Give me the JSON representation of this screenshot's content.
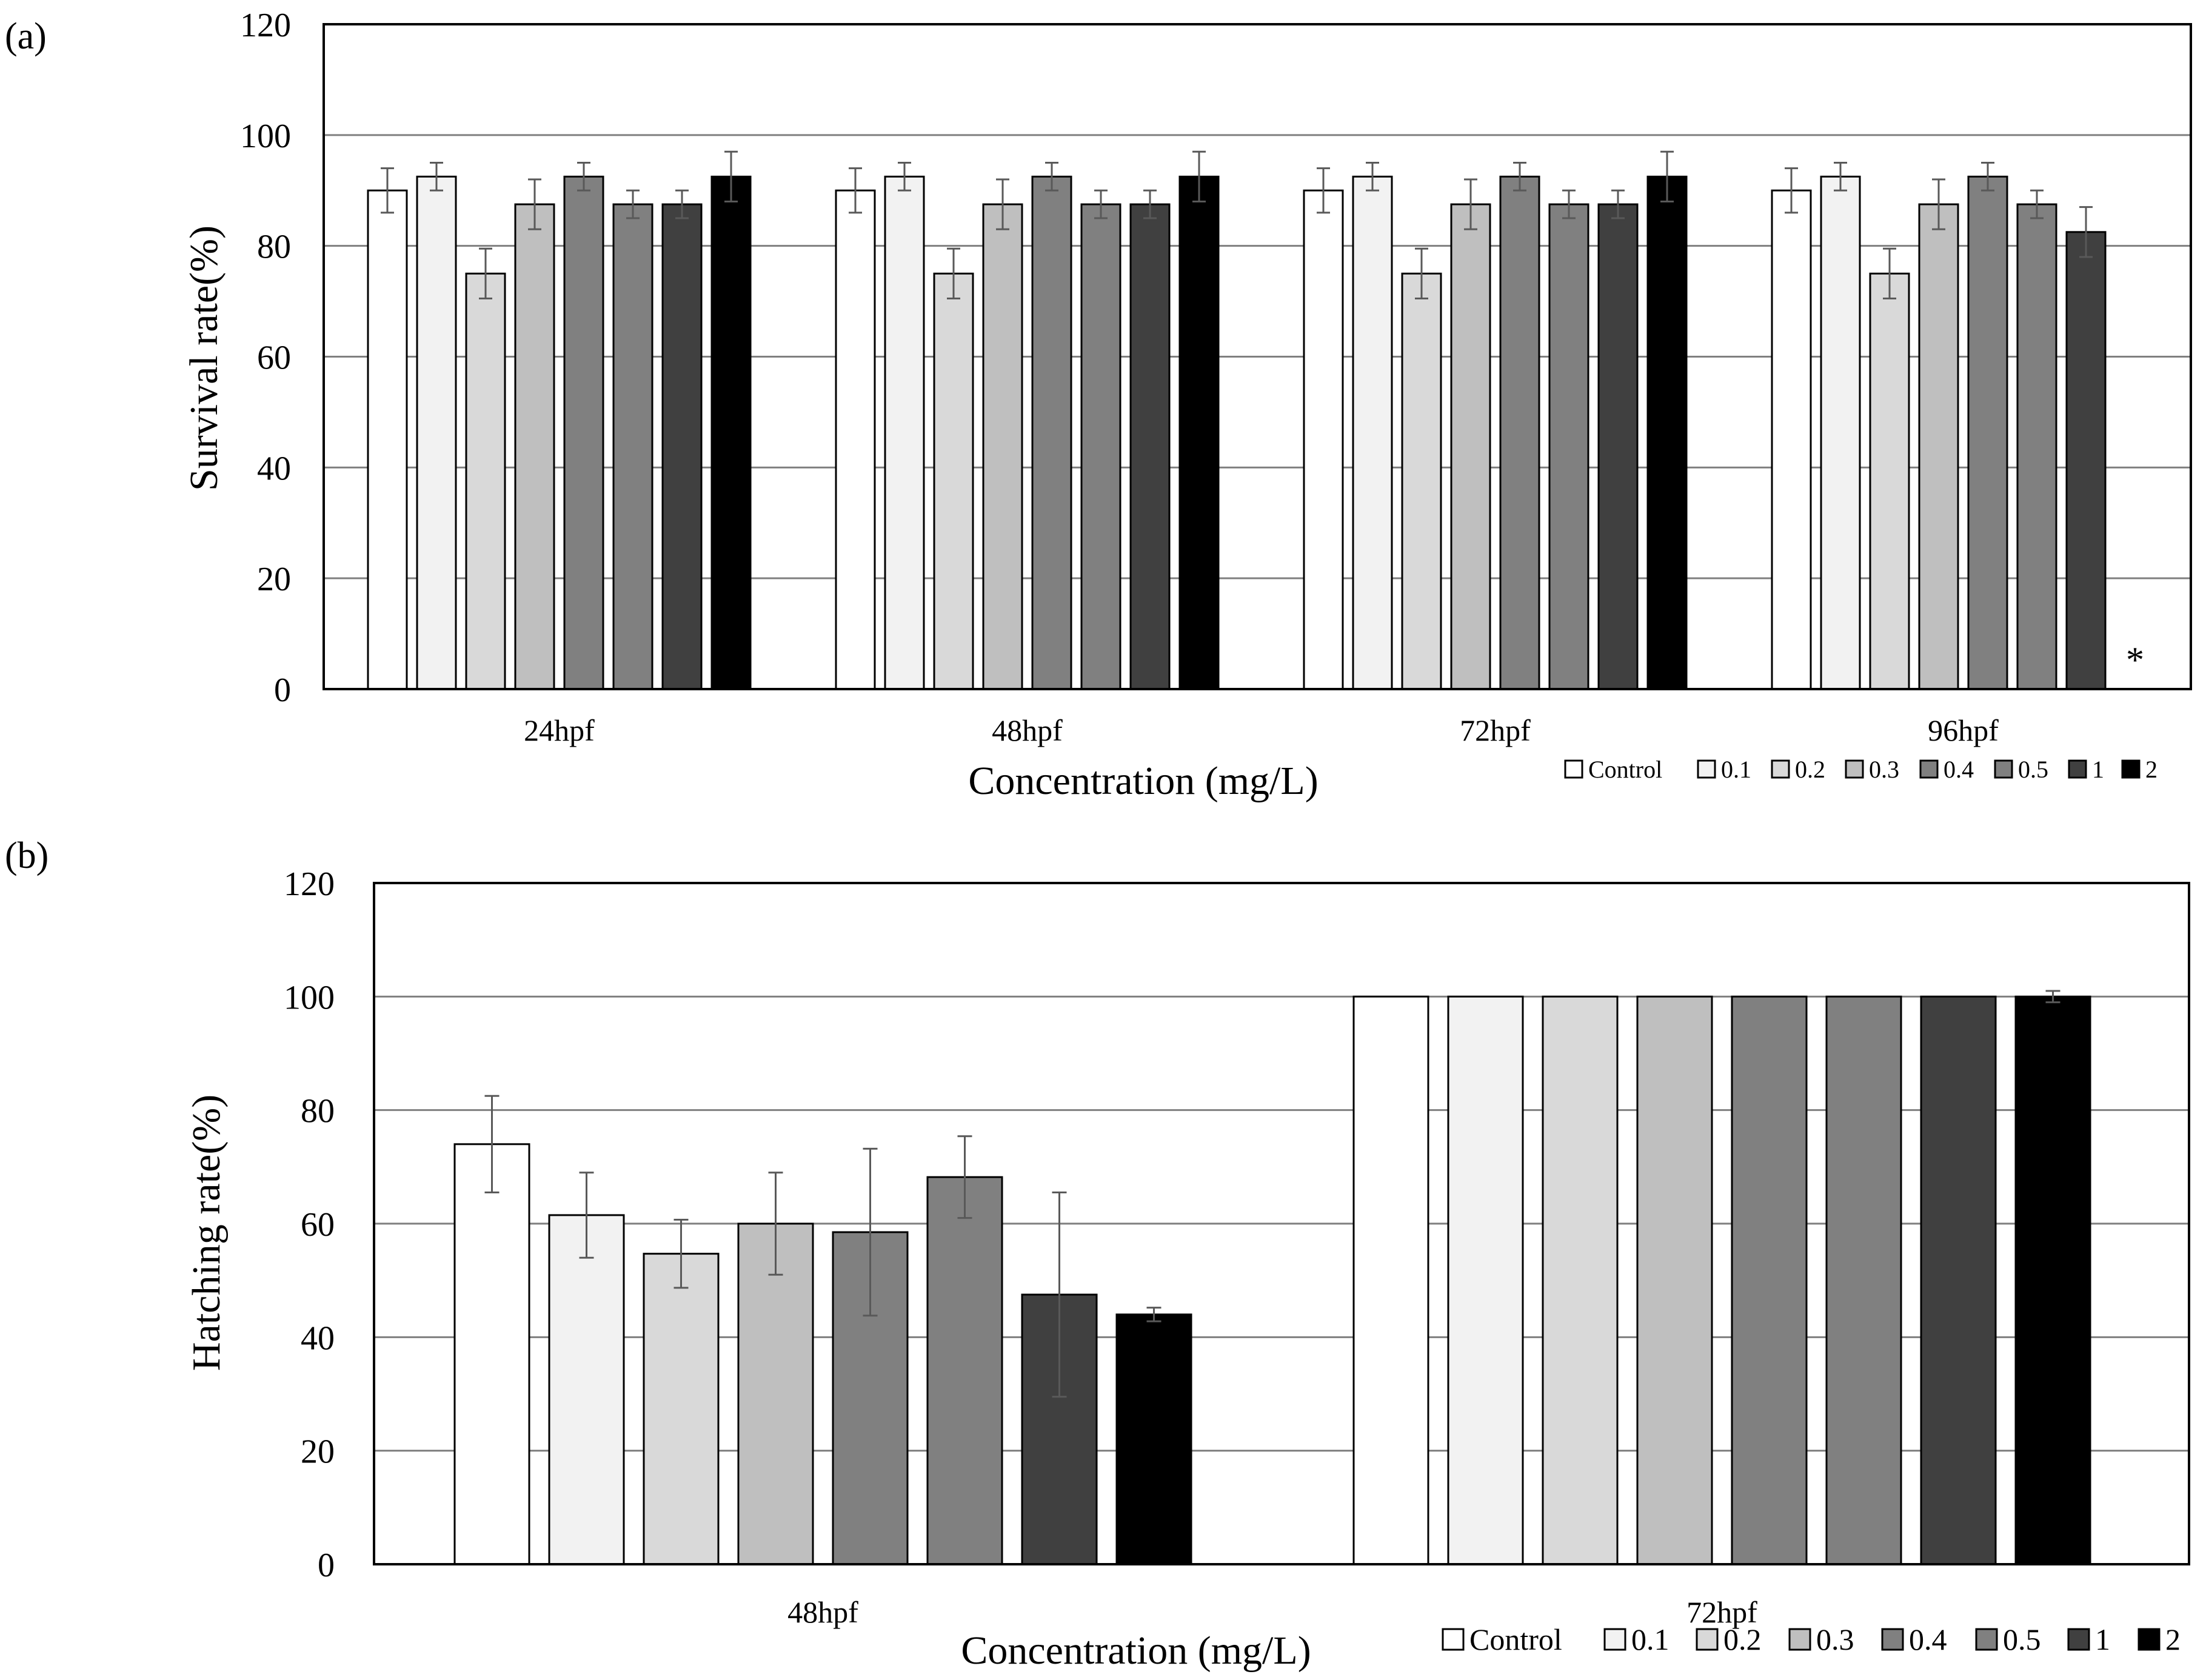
{
  "chart_data": [
    {
      "panel_label": "(a)",
      "type": "bar",
      "title": "",
      "xlabel": "Concentration  (mg/L)",
      "ylabel": "Survival rate(%)",
      "ylim": [
        0,
        120
      ],
      "yticks": [
        0,
        20,
        40,
        60,
        80,
        100,
        120
      ],
      "yticks_labels": [
        "0",
        "20",
        "40",
        "60",
        "80",
        "100",
        "120"
      ],
      "grid": true,
      "legend_position": "bottom-right",
      "categories": [
        "24hpf",
        "48hpf",
        "72hpf",
        "96hpf"
      ],
      "series": [
        {
          "name": "Control",
          "color": "#ffffff",
          "values": [
            90,
            90,
            90,
            90
          ],
          "errors": [
            4,
            4,
            4,
            4
          ]
        },
        {
          "name": "0.1",
          "color": "#f2f2f2",
          "values": [
            92.5,
            92.5,
            92.5,
            92.5
          ],
          "errors": [
            2.5,
            2.5,
            2.5,
            2.5
          ]
        },
        {
          "name": "0.2",
          "color": "#d9d9d9",
          "values": [
            75,
            75,
            75,
            75
          ],
          "errors": [
            4.5,
            4.5,
            4.5,
            4.5
          ]
        },
        {
          "name": "0.3",
          "color": "#bfbfbf",
          "values": [
            87.5,
            87.5,
            87.5,
            87.5
          ],
          "errors": [
            4.5,
            4.5,
            4.5,
            4.5
          ]
        },
        {
          "name": "0.4",
          "color": "#808080",
          "values": [
            92.5,
            92.5,
            92.5,
            92.5
          ],
          "errors": [
            2.5,
            2.5,
            2.5,
            2.5
          ]
        },
        {
          "name": "0.5",
          "color": "#808080",
          "values": [
            87.5,
            87.5,
            87.5,
            87.5
          ],
          "errors": [
            2.5,
            2.5,
            2.5,
            2.5
          ]
        },
        {
          "name": "1",
          "color": "#404040",
          "values": [
            87.5,
            87.5,
            87.5,
            82.5
          ],
          "errors": [
            2.5,
            2.5,
            2.5,
            4.5
          ]
        },
        {
          "name": "2",
          "color": "#000000",
          "values": [
            92.5,
            92.5,
            92.5,
            0
          ],
          "errors": [
            4.5,
            4.5,
            4.5,
            0
          ]
        }
      ],
      "annotations": [
        {
          "text": "*",
          "category": "96hpf",
          "series": "2"
        }
      ]
    },
    {
      "panel_label": "(b)",
      "type": "bar",
      "title": "",
      "xlabel": "Concentration  (mg/L)",
      "ylabel": "Hatching rate(%)",
      "ylim": [
        0,
        120
      ],
      "yticks": [
        0,
        20,
        40,
        60,
        80,
        100,
        120
      ],
      "yticks_labels": [
        "0",
        "20",
        "40",
        "60",
        "80",
        "100",
        "120"
      ],
      "grid": true,
      "legend_position": "bottom-right",
      "categories": [
        "48hpf",
        "72hpf"
      ],
      "series": [
        {
          "name": "Control",
          "color": "#ffffff",
          "values": [
            74,
            100
          ],
          "errors": [
            8.5,
            0
          ]
        },
        {
          "name": "0.1",
          "color": "#f2f2f2",
          "values": [
            61.5,
            100
          ],
          "errors": [
            7.5,
            0
          ]
        },
        {
          "name": "0.2",
          "color": "#d9d9d9",
          "values": [
            54.7,
            100
          ],
          "errors": [
            6,
            0
          ]
        },
        {
          "name": "0.3",
          "color": "#bfbfbf",
          "values": [
            60,
            100
          ],
          "errors": [
            9,
            0
          ]
        },
        {
          "name": "0.4",
          "color": "#808080",
          "values": [
            58.5,
            100
          ],
          "errors": [
            14.7,
            0
          ]
        },
        {
          "name": "0.5",
          "color": "#808080",
          "values": [
            68.2,
            100
          ],
          "errors": [
            7.2,
            0
          ]
        },
        {
          "name": "1",
          "color": "#404040",
          "values": [
            47.5,
            100
          ],
          "errors": [
            18,
            0
          ]
        },
        {
          "name": "2",
          "color": "#000000",
          "values": [
            44,
            100
          ],
          "errors": [
            1.2,
            1
          ]
        }
      ]
    }
  ]
}
